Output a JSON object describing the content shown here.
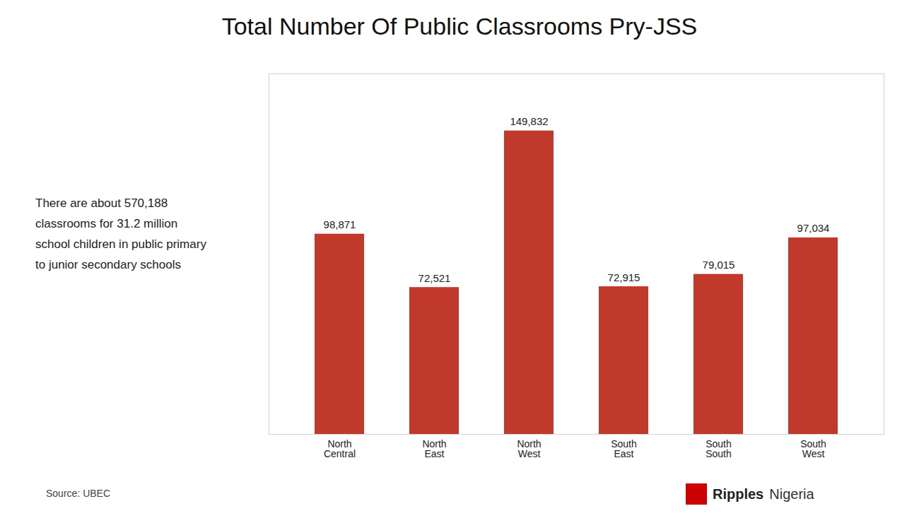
{
  "chart_data": {
    "type": "bar",
    "title": "Total Number Of Public Classrooms Pry-JSS",
    "categories": [
      "North\nCentral",
      "North\nEast",
      "North\nWest",
      "South\nEast",
      "South\nSouth",
      "South\nWest"
    ],
    "values": [
      98871,
      72521,
      149832,
      72915,
      79015,
      97034
    ],
    "value_labels": [
      "98,871",
      "72,521",
      "149,832",
      "72,915",
      "79,015",
      "97,034"
    ],
    "color": "#c0392b",
    "ylim": [
      0,
      178000
    ],
    "data_labels": true,
    "tick_labels": "x",
    "grid": false,
    "annotations": [
      "There are about 570,188\nclassrooms for 31.2 million\nschool children in public primary\nto junior secondary schools",
      "Source: UBEC",
      "Ripples",
      "Nigeria"
    ]
  }
}
